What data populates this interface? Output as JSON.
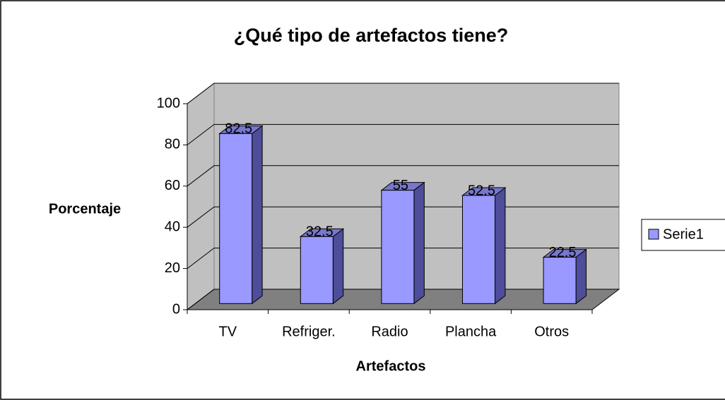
{
  "chart_data": {
    "type": "bar",
    "title": "¿Qué tipo de artefactos tiene?",
    "x_label": "Artefactos",
    "y_label": "Porcentaje",
    "categories": [
      "TV",
      "Refriger.",
      "Radio",
      "Plancha",
      "Otros"
    ],
    "series": [
      {
        "name": "Serie1",
        "color": "#9999ff",
        "values": [
          82.5,
          32.5,
          55,
          52.5,
          22.5
        ]
      }
    ],
    "ylim": [
      0,
      100
    ],
    "yticks": [
      0,
      20,
      40,
      60,
      80,
      100
    ],
    "grid": true,
    "legend": "right"
  }
}
